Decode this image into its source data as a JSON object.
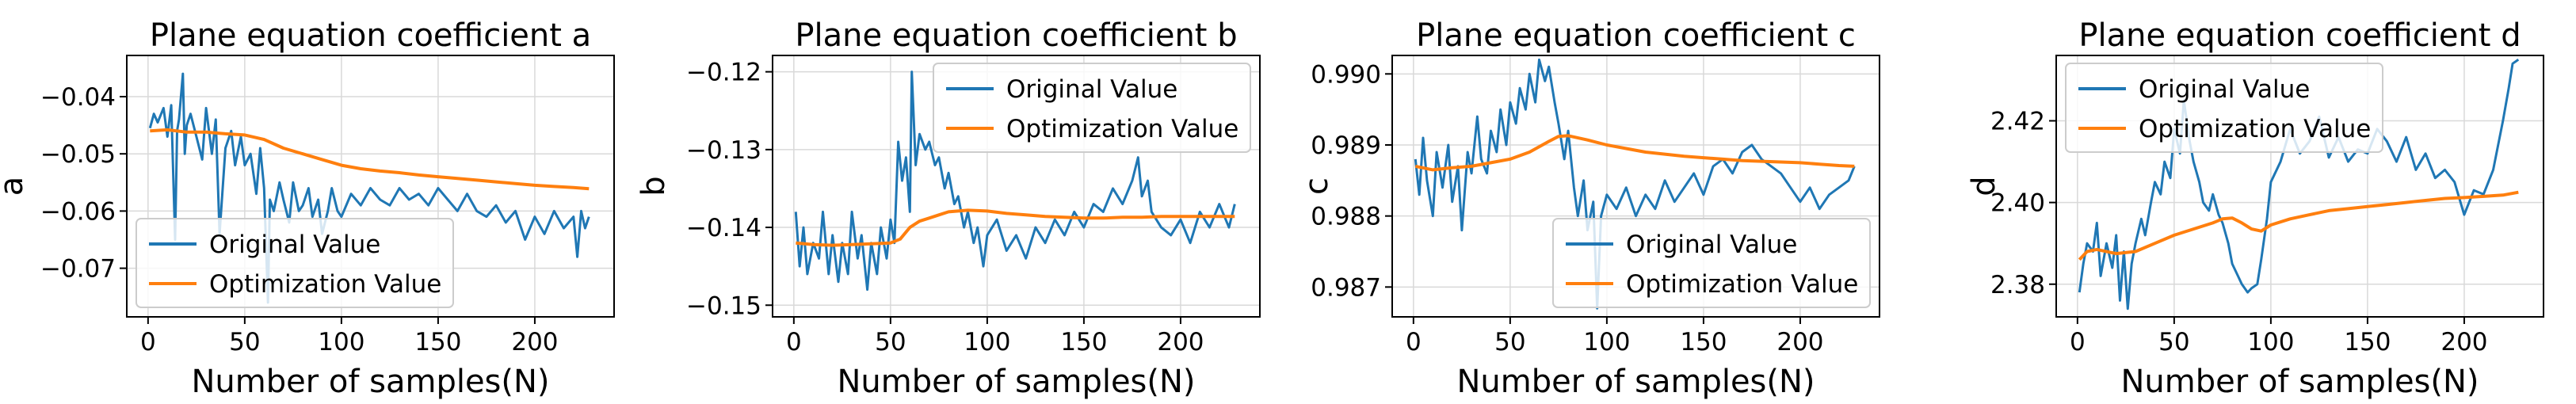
{
  "colors": {
    "original": "#1f77b4",
    "optimization": "#ff7f0e",
    "grid": "#d9d9d9"
  },
  "chart_data": [
    {
      "type": "line",
      "title": "Plane equation coefficient a",
      "xlabel": "Number of samples(N)",
      "ylabel": "a",
      "xlim": [
        -11,
        241
      ],
      "ylim": [
        -0.0785,
        -0.0328
      ],
      "xticks": [
        0,
        50,
        100,
        150,
        200
      ],
      "yticks": [
        -0.07,
        -0.06,
        -0.05,
        -0.04
      ],
      "ytick_labels": [
        "−0.07",
        "−0.06",
        "−0.05",
        "−0.04"
      ],
      "legend_position": "lower-left",
      "series": [
        {
          "name": "Original Value",
          "x": [
            1,
            3,
            5,
            8,
            10,
            12,
            14,
            15,
            16,
            18,
            19,
            20,
            22,
            25,
            28,
            30,
            33,
            35,
            37,
            40,
            43,
            45,
            48,
            50,
            53,
            56,
            58,
            60,
            62,
            63,
            65,
            68,
            70,
            73,
            75,
            78,
            80,
            83,
            85,
            88,
            90,
            93,
            95,
            98,
            100,
            105,
            110,
            115,
            120,
            125,
            130,
            135,
            140,
            145,
            150,
            155,
            160,
            165,
            170,
            175,
            180,
            185,
            190,
            195,
            200,
            205,
            210,
            215,
            220,
            222,
            224,
            226,
            228
          ],
          "values": [
            -0.0455,
            -0.043,
            -0.0445,
            -0.042,
            -0.047,
            -0.0415,
            -0.065,
            -0.046,
            -0.044,
            -0.036,
            -0.05,
            -0.045,
            -0.043,
            -0.047,
            -0.051,
            -0.042,
            -0.05,
            -0.044,
            -0.064,
            -0.049,
            -0.046,
            -0.052,
            -0.047,
            -0.052,
            -0.05,
            -0.057,
            -0.049,
            -0.056,
            -0.076,
            -0.058,
            -0.06,
            -0.055,
            -0.058,
            -0.062,
            -0.055,
            -0.06,
            -0.059,
            -0.056,
            -0.061,
            -0.058,
            -0.064,
            -0.06,
            -0.056,
            -0.06,
            -0.061,
            -0.057,
            -0.059,
            -0.056,
            -0.058,
            -0.059,
            -0.056,
            -0.058,
            -0.057,
            -0.059,
            -0.056,
            -0.058,
            -0.06,
            -0.057,
            -0.06,
            -0.061,
            -0.059,
            -0.062,
            -0.06,
            -0.065,
            -0.061,
            -0.064,
            -0.06,
            -0.063,
            -0.061,
            -0.068,
            -0.06,
            -0.063,
            -0.061
          ]
        },
        {
          "name": "Optimization Value",
          "x": [
            1,
            10,
            20,
            30,
            40,
            50,
            60,
            70,
            80,
            90,
            100,
            110,
            120,
            130,
            140,
            150,
            160,
            170,
            180,
            190,
            200,
            210,
            220,
            228
          ],
          "values": [
            -0.046,
            -0.0458,
            -0.0462,
            -0.0462,
            -0.0465,
            -0.0467,
            -0.0475,
            -0.049,
            -0.05,
            -0.051,
            -0.052,
            -0.0526,
            -0.053,
            -0.0533,
            -0.0537,
            -0.054,
            -0.0543,
            -0.0546,
            -0.0549,
            -0.0552,
            -0.0555,
            -0.0557,
            -0.0559,
            -0.0561
          ]
        }
      ]
    },
    {
      "type": "line",
      "title": "Plane equation coefficient b",
      "xlabel": "Number of samples(N)",
      "ylabel": "b",
      "xlim": [
        -11,
        241
      ],
      "ylim": [
        -0.1515,
        -0.1179
      ],
      "xticks": [
        0,
        50,
        100,
        150,
        200
      ],
      "yticks": [
        -0.15,
        -0.14,
        -0.13,
        -0.12
      ],
      "ytick_labels": [
        "−0.15",
        "−0.14",
        "−0.13",
        "−0.12"
      ],
      "legend_position": "upper-right",
      "series": [
        {
          "name": "Original Value",
          "x": [
            1,
            3,
            5,
            7,
            10,
            13,
            15,
            18,
            20,
            23,
            25,
            28,
            30,
            33,
            35,
            38,
            40,
            43,
            45,
            48,
            50,
            52,
            54,
            56,
            58,
            60,
            61,
            63,
            65,
            68,
            70,
            73,
            75,
            78,
            80,
            83,
            85,
            88,
            90,
            93,
            95,
            98,
            100,
            105,
            110,
            115,
            120,
            125,
            130,
            135,
            140,
            145,
            150,
            155,
            160,
            165,
            170,
            175,
            178,
            180,
            183,
            185,
            190,
            195,
            200,
            205,
            210,
            215,
            220,
            225,
            228
          ],
          "values": [
            -0.138,
            -0.145,
            -0.14,
            -0.146,
            -0.142,
            -0.144,
            -0.138,
            -0.146,
            -0.141,
            -0.147,
            -0.142,
            -0.146,
            -0.138,
            -0.144,
            -0.141,
            -0.148,
            -0.142,
            -0.146,
            -0.14,
            -0.144,
            -0.139,
            -0.142,
            -0.129,
            -0.134,
            -0.131,
            -0.138,
            -0.12,
            -0.132,
            -0.128,
            -0.13,
            -0.129,
            -0.132,
            -0.131,
            -0.135,
            -0.133,
            -0.137,
            -0.136,
            -0.14,
            -0.138,
            -0.142,
            -0.14,
            -0.145,
            -0.141,
            -0.139,
            -0.143,
            -0.141,
            -0.144,
            -0.14,
            -0.142,
            -0.139,
            -0.141,
            -0.138,
            -0.14,
            -0.137,
            -0.138,
            -0.135,
            -0.137,
            -0.134,
            -0.131,
            -0.136,
            -0.134,
            -0.138,
            -0.14,
            -0.141,
            -0.139,
            -0.142,
            -0.138,
            -0.14,
            -0.137,
            -0.14,
            -0.137
          ]
        },
        {
          "name": "Optimization Value",
          "x": [
            1,
            10,
            20,
            30,
            40,
            50,
            55,
            60,
            65,
            70,
            75,
            80,
            90,
            100,
            110,
            120,
            130,
            140,
            150,
            160,
            170,
            180,
            190,
            200,
            210,
            220,
            228
          ],
          "values": [
            -0.142,
            -0.1422,
            -0.1423,
            -0.1422,
            -0.1421,
            -0.142,
            -0.1415,
            -0.14,
            -0.1392,
            -0.1388,
            -0.1384,
            -0.138,
            -0.1378,
            -0.1379,
            -0.1382,
            -0.1384,
            -0.1386,
            -0.1387,
            -0.1388,
            -0.1388,
            -0.1387,
            -0.1387,
            -0.1386,
            -0.1386,
            -0.1386,
            -0.1386,
            -0.1386
          ]
        }
      ]
    },
    {
      "type": "line",
      "title": "Plane equation coefficient c",
      "xlabel": "Number of samples(N)",
      "ylabel": "c",
      "xlim": [
        -11,
        241
      ],
      "ylim": [
        0.98658,
        0.99026
      ],
      "xticks": [
        0,
        50,
        100,
        150,
        200
      ],
      "yticks": [
        0.987,
        0.988,
        0.989,
        0.99
      ],
      "ytick_labels": [
        "0.987",
        "0.988",
        "0.989",
        "0.990"
      ],
      "legend_position": "lower-right",
      "series": [
        {
          "name": "Original Value",
          "x": [
            1,
            3,
            5,
            7,
            10,
            12,
            15,
            18,
            20,
            23,
            25,
            28,
            30,
            33,
            35,
            38,
            40,
            43,
            45,
            48,
            50,
            53,
            55,
            58,
            60,
            63,
            65,
            68,
            70,
            73,
            75,
            78,
            80,
            83,
            85,
            88,
            90,
            93,
            95,
            97,
            100,
            105,
            110,
            115,
            120,
            125,
            130,
            135,
            140,
            145,
            150,
            155,
            160,
            165,
            170,
            175,
            180,
            185,
            190,
            195,
            200,
            205,
            210,
            215,
            220,
            225,
            228
          ],
          "values": [
            0.9888,
            0.9883,
            0.9891,
            0.9885,
            0.988,
            0.9889,
            0.9884,
            0.989,
            0.9882,
            0.9887,
            0.9878,
            0.9889,
            0.9886,
            0.9894,
            0.9888,
            0.9886,
            0.9892,
            0.9889,
            0.9895,
            0.989,
            0.9896,
            0.9893,
            0.9898,
            0.9895,
            0.99,
            0.9896,
            0.9902,
            0.9899,
            0.9901,
            0.9896,
            0.9893,
            0.9888,
            0.9892,
            0.9884,
            0.988,
            0.9885,
            0.9878,
            0.9882,
            0.9867,
            0.988,
            0.9883,
            0.9881,
            0.9884,
            0.988,
            0.9883,
            0.9881,
            0.9885,
            0.9882,
            0.9884,
            0.9886,
            0.9883,
            0.9887,
            0.9888,
            0.9886,
            0.9889,
            0.989,
            0.9888,
            0.9887,
            0.9886,
            0.9884,
            0.9882,
            0.9884,
            0.9881,
            0.9883,
            0.9884,
            0.9885,
            0.9887
          ]
        },
        {
          "name": "Optimization Value",
          "x": [
            1,
            10,
            20,
            30,
            40,
            50,
            60,
            70,
            75,
            80,
            90,
            100,
            110,
            120,
            130,
            140,
            150,
            160,
            170,
            180,
            190,
            200,
            210,
            220,
            228
          ],
          "values": [
            0.9887,
            0.98865,
            0.98868,
            0.9887,
            0.98875,
            0.9888,
            0.9889,
            0.98905,
            0.98912,
            0.98913,
            0.98907,
            0.989,
            0.98895,
            0.9889,
            0.98887,
            0.98884,
            0.98882,
            0.9888,
            0.98878,
            0.98877,
            0.98876,
            0.98875,
            0.98873,
            0.98871,
            0.9887
          ]
        }
      ]
    },
    {
      "type": "line",
      "title": "Plane equation coefficient d",
      "xlabel": "Number of samples(N)",
      "ylabel": "d",
      "xlim": [
        -11,
        241
      ],
      "ylim": [
        2.372,
        2.436
      ],
      "xticks": [
        0,
        50,
        100,
        150,
        200
      ],
      "yticks": [
        2.38,
        2.4,
        2.42
      ],
      "ytick_labels": [
        "2.38",
        "2.40",
        "2.42"
      ],
      "legend_position": "upper-left",
      "series": [
        {
          "name": "Original Value",
          "x": [
            1,
            3,
            5,
            8,
            10,
            12,
            15,
            18,
            20,
            22,
            24,
            26,
            28,
            30,
            33,
            35,
            38,
            40,
            43,
            45,
            48,
            50,
            53,
            55,
            58,
            60,
            63,
            65,
            68,
            70,
            73,
            75,
            78,
            80,
            83,
            85,
            88,
            90,
            93,
            95,
            98,
            100,
            105,
            110,
            115,
            120,
            125,
            130,
            135,
            140,
            145,
            150,
            155,
            160,
            165,
            170,
            175,
            180,
            185,
            190,
            195,
            200,
            205,
            210,
            215,
            220,
            223,
            225,
            228
          ],
          "values": [
            2.378,
            2.385,
            2.39,
            2.388,
            2.395,
            2.382,
            2.39,
            2.384,
            2.392,
            2.376,
            2.388,
            2.374,
            2.385,
            2.39,
            2.396,
            2.392,
            2.4,
            2.405,
            2.402,
            2.41,
            2.406,
            2.418,
            2.412,
            2.425,
            2.415,
            2.41,
            2.405,
            2.4,
            2.398,
            2.402,
            2.397,
            2.395,
            2.39,
            2.385,
            2.382,
            2.38,
            2.378,
            2.379,
            2.38,
            2.386,
            2.396,
            2.405,
            2.41,
            2.418,
            2.412,
            2.415,
            2.421,
            2.411,
            2.416,
            2.41,
            2.413,
            2.412,
            2.418,
            2.415,
            2.41,
            2.416,
            2.408,
            2.412,
            2.406,
            2.408,
            2.405,
            2.397,
            2.403,
            2.402,
            2.408,
            2.42,
            2.428,
            2.434,
            2.435
          ]
        },
        {
          "name": "Optimization Value",
          "x": [
            1,
            5,
            10,
            20,
            30,
            40,
            50,
            60,
            70,
            75,
            80,
            85,
            90,
            95,
            100,
            110,
            120,
            130,
            140,
            150,
            160,
            170,
            180,
            190,
            200,
            210,
            220,
            228
          ],
          "values": [
            2.386,
            2.388,
            2.3885,
            2.3875,
            2.388,
            2.39,
            2.392,
            2.3935,
            2.395,
            2.396,
            2.3962,
            2.395,
            2.3935,
            2.393,
            2.3945,
            2.396,
            2.397,
            2.398,
            2.3985,
            2.399,
            2.3995,
            2.4,
            2.4005,
            2.401,
            2.4012,
            2.4015,
            2.4018,
            2.4025
          ]
        }
      ]
    }
  ]
}
